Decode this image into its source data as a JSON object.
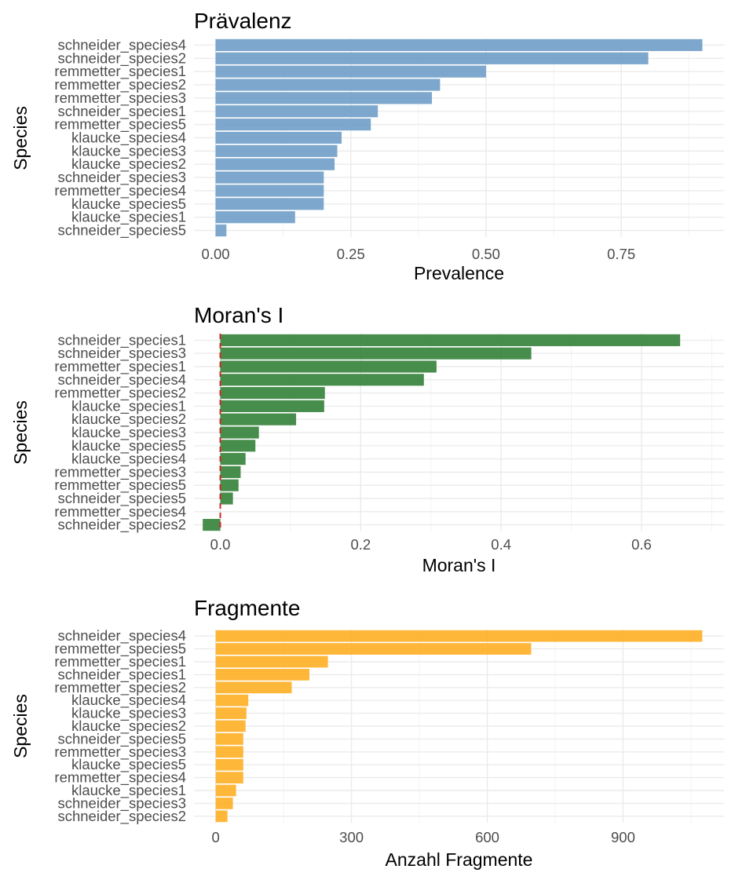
{
  "chart_data": [
    {
      "type": "bar",
      "orientation": "horizontal",
      "title": "Prävalenz",
      "xlabel": "Prevalence",
      "ylabel": "Species",
      "xlim": [
        -0.04,
        0.94
      ],
      "x_ticks": [
        0,
        0.25,
        0.5,
        0.75
      ],
      "x_tick_labels": [
        "0.00",
        "0.25",
        "0.50",
        "0.75"
      ],
      "grid": true,
      "legend": "none",
      "color": "#6b9bc6",
      "categories": [
        "schneider_species4",
        "schneider_species2",
        "remmetter_species1",
        "remmetter_species2",
        "remmetter_species3",
        "schneider_species1",
        "remmetter_species5",
        "klaucke_species4",
        "klaucke_species3",
        "klaucke_species2",
        "schneider_species3",
        "remmetter_species4",
        "klaucke_species5",
        "klaucke_species1",
        "schneider_species5"
      ],
      "values": [
        0.9,
        0.8,
        0.5,
        0.415,
        0.4,
        0.3,
        0.287,
        0.233,
        0.225,
        0.22,
        0.2,
        0.2,
        0.2,
        0.147,
        0.02
      ]
    },
    {
      "type": "bar",
      "orientation": "horizontal",
      "title": "Moran's I",
      "xlabel": "Moran's I",
      "ylabel": "Species",
      "xlim": [
        -0.0375,
        0.7175
      ],
      "x_ticks": [
        0,
        0.2,
        0.4,
        0.6
      ],
      "x_tick_labels": [
        "0.0",
        "0.2",
        "0.4",
        "0.6"
      ],
      "grid": true,
      "legend": "none",
      "color": "#2e7d32",
      "reference_line": {
        "x": 0,
        "color": "#d62728",
        "style": "dashed"
      },
      "categories": [
        "schneider_species1",
        "schneider_species3",
        "remmetter_species1",
        "schneider_species4",
        "remmetter_species2",
        "klaucke_species1",
        "klaucke_species2",
        "klaucke_species3",
        "klaucke_species5",
        "klaucke_species4",
        "remmetter_species3",
        "remmetter_species5",
        "schneider_species5",
        "remmetter_species4",
        "schneider_species2"
      ],
      "values": [
        0.655,
        0.443,
        0.308,
        0.29,
        0.149,
        0.148,
        0.108,
        0.055,
        0.05,
        0.036,
        0.029,
        0.026,
        0.018,
        0.0,
        -0.025
      ]
    },
    {
      "type": "bar",
      "orientation": "horizontal",
      "title": "Fragmente",
      "xlabel": "Anzahl Fragmente",
      "ylabel": "Species",
      "xlim": [
        -48,
        1123
      ],
      "x_ticks": [
        0,
        300,
        600,
        900
      ],
      "x_tick_labels": [
        "0",
        "300",
        "600",
        "900"
      ],
      "grid": true,
      "legend": "none",
      "color": "#ffad1f",
      "categories": [
        "schneider_species4",
        "remmetter_species5",
        "remmetter_species1",
        "schneider_species1",
        "remmetter_species2",
        "klaucke_species4",
        "klaucke_species3",
        "klaucke_species2",
        "schneider_species5",
        "remmetter_species3",
        "klaucke_species5",
        "remmetter_species4",
        "klaucke_species1",
        "schneider_species3",
        "schneider_species2"
      ],
      "values": [
        1075,
        697,
        248,
        207,
        168,
        72,
        68,
        66,
        61,
        61,
        61,
        61,
        45,
        38,
        26
      ]
    }
  ]
}
